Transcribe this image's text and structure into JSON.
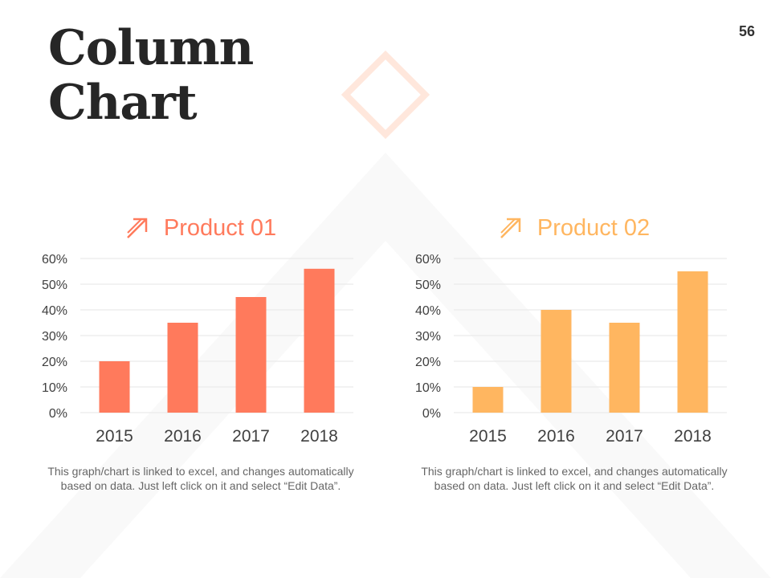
{
  "page": {
    "title_line1": "Column",
    "title_line2": "Chart",
    "page_number": "56"
  },
  "panels": [
    {
      "heading": "Product 01",
      "color": "#ff7a5c",
      "icon": "arrow-up-right-icon",
      "note_line1": "This graph/chart is linked to excel, and changes automatically",
      "note_line2": "based on data. Just left click on it and select “Edit Data”."
    },
    {
      "heading": "Product 02",
      "color": "#ffb660",
      "icon": "arrow-up-right-icon",
      "note_line1": "This graph/chart is linked to excel, and changes automatically",
      "note_line2": "based on data. Just left click on it and select “Edit Data”."
    }
  ],
  "chart_data": [
    {
      "type": "bar",
      "title": "Product 01",
      "categories": [
        "2015",
        "2016",
        "2017",
        "2018"
      ],
      "values": [
        20,
        35,
        45,
        56
      ],
      "unit": "%",
      "yticks": [
        "0%",
        "10%",
        "20%",
        "30%",
        "40%",
        "50%",
        "60%"
      ],
      "ylim": [
        0,
        60
      ],
      "grid": true,
      "color": "#ff7a5c"
    },
    {
      "type": "bar",
      "title": "Product 02",
      "categories": [
        "2015",
        "2016",
        "2017",
        "2018"
      ],
      "values": [
        10,
        40,
        35,
        55
      ],
      "unit": "%",
      "yticks": [
        "0%",
        "10%",
        "20%",
        "30%",
        "40%",
        "50%",
        "60%"
      ],
      "ylim": [
        0,
        60
      ],
      "grid": true,
      "color": "#ffb660"
    }
  ]
}
